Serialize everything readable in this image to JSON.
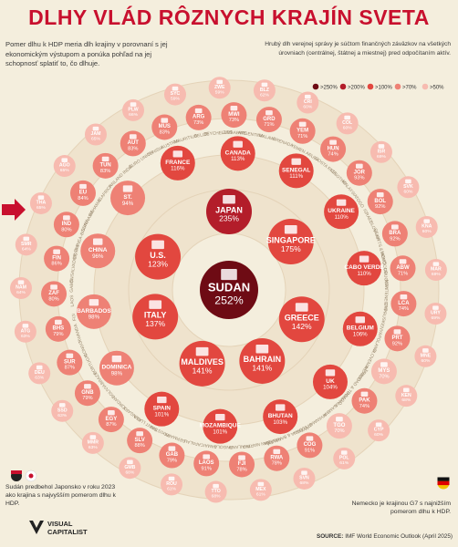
{
  "title": "DLHY VLÁD RÔZNYCH KRAJÍN SVETA",
  "intro": "Pomer dlhu k HDP meria dlh krajiny v porovnaní s jej ekonomickým výstupom a ponúka pohľad na jej schopnosť splatiť to, čo dlhuje.",
  "note": "Hrubý dlh verejnej správy je súčtom finančných záväzkov na všetkých úrovniach (centrálnej, štátnej a miestnej) pred odpočítaním aktív.",
  "legend": [
    ">250%",
    ">200%",
    ">100%",
    ">70%",
    ">50%"
  ],
  "colors": {
    "bg": "#f4eedd",
    "c250": "#6e0b14",
    "c200": "#b31d2a",
    "c100": "#e2473f",
    "c70": "#ee8175",
    "c50": "#f7bbb0",
    "ring": "#eddcc4",
    "accent": "#c8102e"
  },
  "footnote_left": "Sudán predbehol Japonsko v roku 2023 ako krajina s najvyšším pomerom dlhu k HDP.",
  "footnote_right": "Nemecko je krajinou G7 s najnižším pomerom dlhu k HDP.",
  "source_label": "SOURCE:",
  "source_text": "IMF World Economic Outlook (April 2025)",
  "logo_line1": "VISUAL",
  "logo_line2": "CAPITALIST",
  "chart_data": {
    "type": "bubble",
    "unit": "%",
    "countries": [
      {
        "name": "SUDAN",
        "value": 252
      },
      {
        "name": "JAPAN",
        "value": 235
      },
      {
        "name": "SINGAPORE",
        "value": 175
      },
      {
        "name": "GREECE",
        "value": 142
      },
      {
        "name": "BAHRAIN",
        "value": 141
      },
      {
        "name": "MALDIVES",
        "value": 141
      },
      {
        "name": "ITALY",
        "value": 137
      },
      {
        "name": "U.S.",
        "value": 123
      },
      {
        "name": "FRANCE",
        "value": 116
      },
      {
        "name": "CANADA",
        "value": 113
      },
      {
        "name": "SENEGAL",
        "value": 111
      },
      {
        "name": "UKRAINE",
        "value": 110
      },
      {
        "name": "CABO VERDE",
        "value": 110
      },
      {
        "name": "BELGIUM",
        "value": 106
      },
      {
        "name": "UK",
        "value": 104
      },
      {
        "name": "BHUTAN",
        "value": 103
      },
      {
        "name": "MOZAMBIQUE",
        "value": 101
      },
      {
        "name": "SPAIN",
        "value": 101
      },
      {
        "name": "DOMINICA",
        "value": 98
      },
      {
        "name": "BARBADOS",
        "value": 98
      },
      {
        "name": "CHINA",
        "value": 96
      },
      {
        "name": "ST. VINCENT & THE GRENADINES",
        "value": 94
      },
      {
        "name": "SYC",
        "value": 59
      },
      {
        "name": "ZWE",
        "value": 59
      },
      {
        "name": "ARG",
        "value": 73
      },
      {
        "name": "MWI",
        "value": 73
      },
      {
        "name": "GRD",
        "value": 71
      },
      {
        "name": "BLZ",
        "value": 62
      },
      {
        "name": "YEM",
        "value": 71
      },
      {
        "name": "HUN",
        "value": 74
      },
      {
        "name": "JOR",
        "value": 93
      },
      {
        "name": "BOL",
        "value": 92
      },
      {
        "name": "BRA",
        "value": 92
      },
      {
        "name": "ABW",
        "value": 71
      },
      {
        "name": "CRI",
        "value": 60
      },
      {
        "name": "LCA",
        "value": 74
      },
      {
        "name": "PRT",
        "value": 92
      },
      {
        "name": "MYS",
        "value": 70
      },
      {
        "name": "COL",
        "value": 60
      },
      {
        "name": "PAK",
        "value": 74
      },
      {
        "name": "TGO",
        "value": 70
      },
      {
        "name": "COG",
        "value": 91
      },
      {
        "name": "ISR",
        "value": 69
      },
      {
        "name": "SVK",
        "value": 60
      },
      {
        "name": "RWA",
        "value": 78
      },
      {
        "name": "KNA",
        "value": 60
      },
      {
        "name": "FJI",
        "value": 78
      },
      {
        "name": "LAOS",
        "value": 91
      },
      {
        "name": "MAR",
        "value": 69
      },
      {
        "name": "URY",
        "value": 69
      },
      {
        "name": "MNE",
        "value": 60
      },
      {
        "name": "GAB",
        "value": 79
      },
      {
        "name": "SLV",
        "value": 88
      },
      {
        "name": "KEN",
        "value": 68
      },
      {
        "name": "CYP",
        "value": 60
      },
      {
        "name": "EGY",
        "value": 87
      },
      {
        "name": "GNB",
        "value": 79
      },
      {
        "name": "POL",
        "value": 61
      },
      {
        "name": "SVN",
        "value": 68
      },
      {
        "name": "SUR",
        "value": 87
      },
      {
        "name": "BHS",
        "value": 79
      },
      {
        "name": "MEX",
        "value": 61
      },
      {
        "name": "TTO",
        "value": 68
      },
      {
        "name": "ZAF",
        "value": 80
      },
      {
        "name": "FIN",
        "value": 86
      },
      {
        "name": "ROU",
        "value": 61
      },
      {
        "name": "GMB",
        "value": 68
      },
      {
        "name": "MMR",
        "value": 63
      },
      {
        "name": "IND",
        "value": 80
      },
      {
        "name": "EU",
        "value": 84
      },
      {
        "name": "SSD",
        "value": 63
      },
      {
        "name": "TUN",
        "value": 83
      },
      {
        "name": "AUT",
        "value": 83
      },
      {
        "name": "MUS",
        "value": 83
      },
      {
        "name": "DEU",
        "value": 63
      },
      {
        "name": "ATG",
        "value": 63
      },
      {
        "name": "NAM",
        "value": 64
      },
      {
        "name": "SMR",
        "value": 64
      },
      {
        "name": "THA",
        "value": 65
      },
      {
        "name": "AGO",
        "value": 65
      },
      {
        "name": "JAM",
        "value": 65
      },
      {
        "name": "PLW",
        "value": 66
      }
    ],
    "ring_labels": [
      "BELIZE",
      "SEYCHELLES",
      "ZIMBABWE",
      "ARGENTINA",
      "MALAWI",
      "GRENADA",
      "YEMEN",
      "ARUBA",
      "COSTA RICA",
      "LESOTHO",
      "MALAYSIA",
      "TOGO",
      "ISRAEL",
      "SLOVAKIA",
      "ST KITTS & NEVIS",
      "MOROCCO",
      "URUGUAY",
      "MONTENEGRO",
      "CYPRUS",
      "KENYA",
      "POLAND",
      "SLOVENIA",
      "MEXICO",
      "TRINIDAD & TOBAGO",
      "ROMANIA",
      "GAMBIA",
      "MYANMAR",
      "S. SUDAN",
      "ANTIGUA & BARBUDA",
      "NAMIBIA",
      "SAN MARINO",
      "THAILAND",
      "ANGOLA",
      "JAMAICA",
      "PALAU",
      "GERMANY",
      "PAKISTAN",
      "SAINT LUCIA",
      "HUNGARY",
      "JORDAN",
      "BOLIVIA",
      "BRAZIL",
      "PORTUGAL",
      "CONGO",
      "RWANDA",
      "FIJI",
      "LAOS",
      "GABON",
      "EL SALVADOR",
      "EGYPT",
      "GUINEA-BISSAU",
      "SURINAME",
      "BAHAMAS",
      "S. AFRICA",
      "FINLAND",
      "INDIA",
      "EURO UNION",
      "TUNISIA",
      "AUSTRIA",
      "MAURITIUS"
    ]
  }
}
